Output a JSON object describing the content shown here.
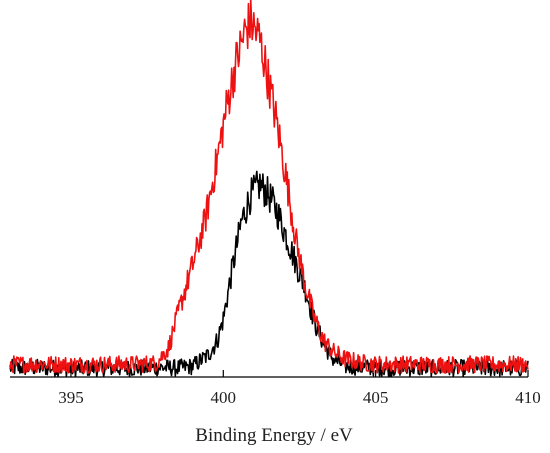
{
  "chart_data": {
    "type": "line",
    "title": "",
    "xlabel": "Binding Energy / eV",
    "ylabel": "",
    "xlim": [
      393,
      410
    ],
    "ylim": [
      0,
      1
    ],
    "x_ticks": [
      395,
      400,
      405,
      410
    ],
    "x_tick_labels": [
      "395",
      "400",
      "405",
      "410"
    ],
    "grid": false,
    "legend": "none",
    "series": [
      {
        "color": "#000000",
        "x": [
          393.0,
          394.0,
          395.0,
          396.0,
          397.0,
          398.0,
          398.5,
          399.0,
          399.5,
          399.8,
          400.0,
          400.3,
          400.6,
          400.9,
          401.2,
          401.5,
          401.8,
          402.1,
          402.4,
          402.7,
          403.0,
          403.3,
          403.6,
          404.0,
          405.0,
          406.0,
          407.0,
          408.0,
          409.0,
          410.0
        ],
        "values": [
          0.025,
          0.026,
          0.023,
          0.025,
          0.024,
          0.026,
          0.025,
          0.03,
          0.06,
          0.1,
          0.16,
          0.3,
          0.43,
          0.5,
          0.53,
          0.5,
          0.45,
          0.38,
          0.31,
          0.24,
          0.15,
          0.09,
          0.05,
          0.03,
          0.025,
          0.025,
          0.024,
          0.025,
          0.024,
          0.024
        ]
      },
      {
        "color": "#ee1111",
        "x": [
          393.0,
          394.0,
          395.0,
          396.0,
          397.0,
          397.8,
          398.2,
          398.6,
          399.0,
          399.4,
          399.8,
          400.1,
          400.4,
          400.7,
          400.9,
          401.2,
          401.5,
          401.8,
          402.1,
          402.4,
          402.7,
          403.0,
          403.3,
          403.6,
          404.0,
          404.5,
          405.0,
          406.0,
          407.0,
          408.0,
          409.0,
          410.0
        ],
        "values": [
          0.035,
          0.036,
          0.034,
          0.035,
          0.035,
          0.038,
          0.08,
          0.2,
          0.31,
          0.43,
          0.6,
          0.74,
          0.86,
          0.95,
          0.98,
          0.93,
          0.81,
          0.68,
          0.53,
          0.37,
          0.25,
          0.16,
          0.1,
          0.07,
          0.05,
          0.04,
          0.035,
          0.035,
          0.034,
          0.035,
          0.034,
          0.035
        ]
      }
    ]
  }
}
